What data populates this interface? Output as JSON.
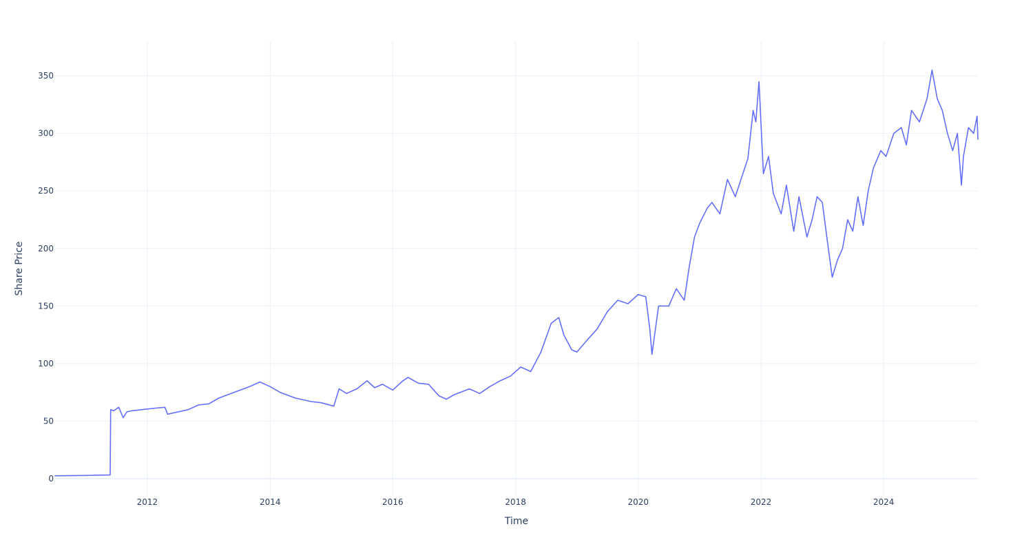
{
  "chart_data": {
    "type": "line",
    "xlabel": "Time",
    "ylabel": "Share Price",
    "xlim": [
      "2010-07-01",
      "2025-07-15"
    ],
    "ylim": [
      -15,
      380
    ],
    "x_ticks": [
      "2012",
      "2014",
      "2016",
      "2018",
      "2020",
      "2022",
      "2024"
    ],
    "y_ticks": [
      "0",
      "50",
      "100",
      "150",
      "200",
      "250",
      "300",
      "350"
    ],
    "grid": true,
    "line_color": "#636efa",
    "series": [
      {
        "x": [
          "2010-07-01",
          "2010-10-01",
          "2011-01-01",
          "2011-03-01",
          "2011-05-25",
          "2011-05-28",
          "2011-06-15",
          "2011-07-15",
          "2011-08-10",
          "2011-09-01",
          "2011-10-01",
          "2011-12-01",
          "2012-02-01",
          "2012-04-15",
          "2012-05-01",
          "2012-06-01",
          "2012-09-01",
          "2012-11-01",
          "2013-01-01",
          "2013-03-01",
          "2013-06-01",
          "2013-09-01",
          "2013-11-01",
          "2014-01-01",
          "2014-03-01",
          "2014-06-01",
          "2014-09-01",
          "2014-11-01",
          "2015-01-15",
          "2015-02-15",
          "2015-04-01",
          "2015-06-01",
          "2015-08-01",
          "2015-09-15",
          "2015-11-01",
          "2016-01-01",
          "2016-03-01",
          "2016-04-01",
          "2016-06-01",
          "2016-08-01",
          "2016-10-01",
          "2016-11-15",
          "2017-01-01",
          "2017-04-01",
          "2017-06-01",
          "2017-08-01",
          "2017-10-01",
          "2017-12-01",
          "2018-02-01",
          "2018-04-01",
          "2018-06-01",
          "2018-08-01",
          "2018-09-15",
          "2018-10-15",
          "2018-12-01",
          "2019-01-01",
          "2019-03-01",
          "2019-05-01",
          "2019-07-01",
          "2019-09-01",
          "2019-11-01",
          "2020-01-01",
          "2020-02-15",
          "2020-03-10",
          "2020-03-23",
          "2020-05-01",
          "2020-07-01",
          "2020-08-15",
          "2020-10-01",
          "2020-11-01",
          "2020-12-01",
          "2021-01-01",
          "2021-02-15",
          "2021-03-15",
          "2021-05-01",
          "2021-06-15",
          "2021-08-01",
          "2021-09-15",
          "2021-10-15",
          "2021-11-15",
          "2021-12-01",
          "2021-12-20",
          "2022-01-15",
          "2022-02-15",
          "2022-03-15",
          "2022-05-01",
          "2022-06-01",
          "2022-07-15",
          "2022-08-15",
          "2022-10-01",
          "2022-11-01",
          "2022-12-01",
          "2023-01-01",
          "2023-02-01",
          "2023-03-01",
          "2023-04-01",
          "2023-05-01",
          "2023-06-01",
          "2023-07-01",
          "2023-08-01",
          "2023-09-01",
          "2023-10-01",
          "2023-11-01",
          "2023-12-15",
          "2024-01-15",
          "2024-03-01",
          "2024-04-15",
          "2024-05-15",
          "2024-06-15",
          "2024-08-01",
          "2024-09-15",
          "2024-10-15",
          "2024-11-15",
          "2024-12-15",
          "2025-01-15",
          "2025-02-15",
          "2025-03-15",
          "2025-04-08",
          "2025-04-20",
          "2025-05-20",
          "2025-06-20",
          "2025-07-10",
          "2025-07-15"
        ],
        "y": [
          2.5,
          2.6,
          2.8,
          3.0,
          3.2,
          60,
          59,
          62,
          53,
          58,
          59,
          60,
          61,
          62,
          56,
          57,
          60,
          64,
          65,
          70,
          75,
          80,
          84,
          80,
          75,
          70,
          67,
          66,
          63,
          78,
          74,
          78,
          85,
          79,
          82,
          77,
          85,
          88,
          83,
          82,
          72,
          69,
          73,
          78,
          74,
          80,
          85,
          89,
          97,
          93,
          110,
          135,
          140,
          125,
          112,
          110,
          120,
          130,
          145,
          155,
          152,
          160,
          158,
          130,
          108,
          150,
          150,
          165,
          155,
          185,
          210,
          222,
          235,
          240,
          230,
          260,
          245,
          265,
          278,
          320,
          310,
          345,
          265,
          280,
          248,
          230,
          255,
          215,
          245,
          210,
          225,
          245,
          240,
          205,
          175,
          190,
          200,
          225,
          215,
          245,
          220,
          250,
          270,
          285,
          280,
          300,
          305,
          290,
          320,
          310,
          330,
          355,
          330,
          320,
          300,
          285,
          300,
          255,
          280,
          305,
          300,
          315,
          295
        ]
      }
    ]
  }
}
